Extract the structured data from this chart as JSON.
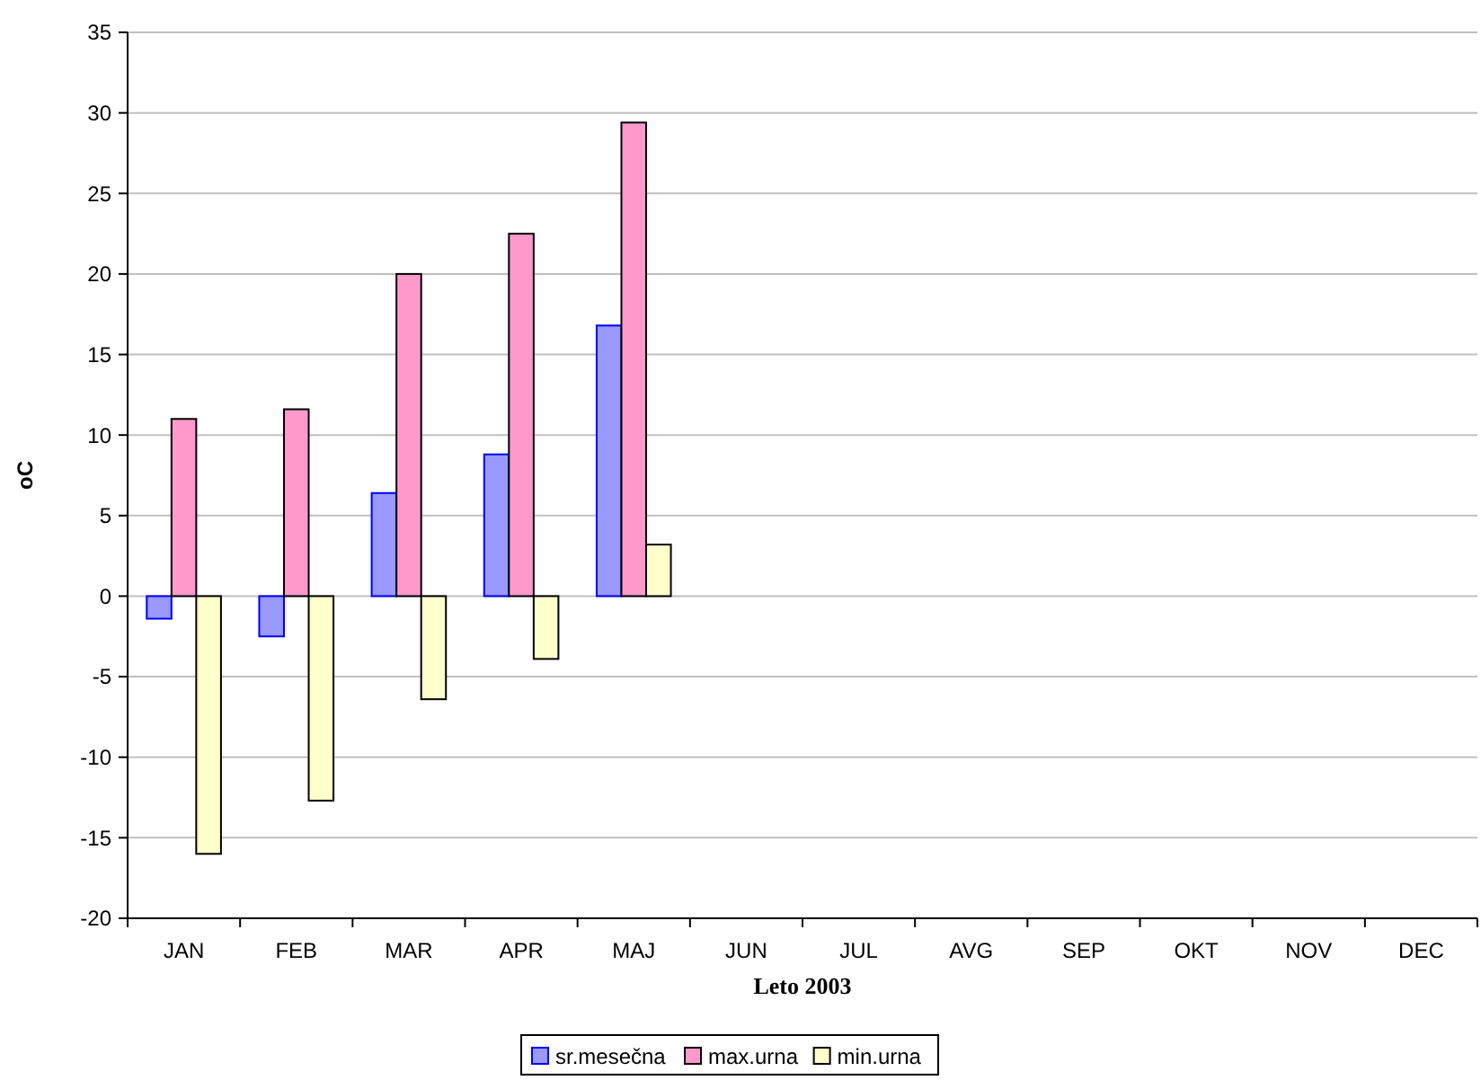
{
  "chart_data": {
    "type": "bar",
    "xlabel": "Leto 2003",
    "ylabel": "oC",
    "categories": [
      "JAN",
      "FEB",
      "MAR",
      "APR",
      "MAJ",
      "JUN",
      "JUL",
      "AVG",
      "SEP",
      "OKT",
      "NOV",
      "DEC"
    ],
    "series": [
      {
        "name": "sr.mesečna",
        "color": "#9999ff",
        "values": [
          -1.4,
          -2.5,
          6.4,
          8.8,
          16.8,
          null,
          null,
          null,
          null,
          null,
          null,
          null
        ]
      },
      {
        "name": "max.urna",
        "color": "#ff99cc",
        "values": [
          11,
          11.6,
          20,
          22.5,
          29.4,
          null,
          null,
          null,
          null,
          null,
          null,
          null
        ]
      },
      {
        "name": "min.urna",
        "color": "#ffffcc",
        "values": [
          -16,
          -12.7,
          -6.4,
          -3.9,
          3.2,
          null,
          null,
          null,
          null,
          null,
          null,
          null
        ]
      }
    ],
    "ylim": [
      -20,
      35
    ],
    "yticks": [
      -20,
      -15,
      -10,
      -5,
      0,
      5,
      10,
      15,
      20,
      25,
      30,
      35
    ],
    "grid": "y",
    "legend": "bottom"
  }
}
